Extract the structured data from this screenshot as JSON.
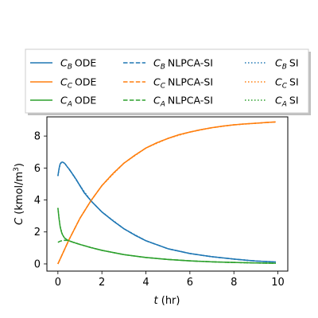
{
  "chart_data": {
    "type": "line",
    "xlabel": "t (hr)",
    "ylabel": "C (kmol/m³)",
    "xlim": [
      -0.5,
      10.45
    ],
    "ylim": [
      -0.45,
      9.2
    ],
    "xticks": [
      0,
      2,
      4,
      6,
      8,
      10
    ],
    "yticks": [
      0,
      2,
      4,
      6,
      8
    ],
    "grid": false,
    "legend_placement": "top, outside plot area, 3 columns",
    "series": [
      {
        "name": "C_B ODE",
        "species": "B",
        "method": "ODE",
        "color": "#1f77b4",
        "linestyle": "solid",
        "x": [
          0,
          0.05,
          0.1,
          0.15,
          0.2,
          0.25,
          0.3,
          0.35,
          0.4,
          0.5,
          0.6,
          0.8,
          1.0,
          1.2,
          1.5,
          2.0,
          2.5,
          3.0,
          3.5,
          4.0,
          4.5,
          5.0,
          6.0,
          7.0,
          8.0,
          9.0,
          9.9
        ],
        "y": [
          5.5,
          5.95,
          6.25,
          6.35,
          6.37,
          6.35,
          6.3,
          6.22,
          6.12,
          5.95,
          5.75,
          5.35,
          4.9,
          4.45,
          3.95,
          3.25,
          2.7,
          2.2,
          1.8,
          1.45,
          1.2,
          0.95,
          0.65,
          0.45,
          0.3,
          0.18,
          0.12
        ]
      },
      {
        "name": "C_C ODE",
        "species": "C",
        "method": "ODE",
        "color": "#ff7f0e",
        "linestyle": "solid",
        "x": [
          0,
          0.25,
          0.5,
          1.0,
          1.5,
          2.0,
          2.5,
          3.0,
          3.5,
          4.0,
          4.5,
          5.0,
          5.5,
          6.0,
          6.5,
          7.0,
          7.5,
          8.0,
          8.5,
          9.0,
          9.5,
          9.9
        ],
        "y": [
          0,
          0.75,
          1.5,
          2.85,
          3.95,
          4.9,
          5.65,
          6.3,
          6.8,
          7.25,
          7.58,
          7.85,
          8.08,
          8.25,
          8.4,
          8.52,
          8.62,
          8.7,
          8.76,
          8.8,
          8.85,
          8.88
        ]
      },
      {
        "name": "C_A ODE",
        "species": "A",
        "method": "ODE",
        "color": "#2ca02c",
        "linestyle": "solid",
        "x": [
          0,
          0.05,
          0.1,
          0.15,
          0.2,
          0.3,
          0.4,
          0.5,
          0.7,
          1.0,
          1.5,
          2.0,
          3.0,
          4.0,
          5.0,
          6.0,
          7.0,
          8.0,
          9.0,
          9.9
        ],
        "y": [
          3.5,
          2.85,
          2.35,
          2.05,
          1.85,
          1.62,
          1.52,
          1.45,
          1.35,
          1.22,
          1.02,
          0.85,
          0.58,
          0.4,
          0.28,
          0.19,
          0.13,
          0.09,
          0.06,
          0.04
        ]
      },
      {
        "name": "C_B NLPCA-SI",
        "species": "B",
        "method": "NLPCA-SI",
        "color": "#1f77b4",
        "linestyle": "dashed",
        "x": [
          0.5,
          0.6,
          0.8,
          1.0,
          1.2,
          1.5,
          2.0,
          2.5,
          3.0,
          3.5,
          4.0,
          4.5,
          5.0,
          6.0,
          7.0,
          8.0,
          9.0,
          9.9
        ],
        "y": [
          5.95,
          5.75,
          5.35,
          4.9,
          4.45,
          3.95,
          3.25,
          2.7,
          2.2,
          1.8,
          1.45,
          1.2,
          0.95,
          0.65,
          0.45,
          0.3,
          0.18,
          0.12
        ]
      },
      {
        "name": "C_C NLPCA-SI",
        "species": "C",
        "method": "NLPCA-SI",
        "color": "#ff7f0e",
        "linestyle": "dashed",
        "x": [
          0,
          0.25,
          0.5,
          1.0,
          1.5,
          2.0,
          2.5,
          3.0,
          3.5,
          4.0,
          4.5,
          5.0,
          5.5,
          6.0,
          6.5,
          7.0,
          7.5,
          8.0,
          8.5,
          9.0,
          9.5,
          9.9
        ],
        "y": [
          0,
          0.75,
          1.5,
          2.85,
          3.95,
          4.9,
          5.65,
          6.3,
          6.8,
          7.25,
          7.58,
          7.85,
          8.08,
          8.25,
          8.4,
          8.52,
          8.62,
          8.7,
          8.76,
          8.8,
          8.85,
          8.88
        ]
      },
      {
        "name": "C_A NLPCA-SI",
        "species": "A",
        "method": "NLPCA-SI",
        "color": "#2ca02c",
        "linestyle": "dashed",
        "x": [
          0,
          0.1,
          0.2,
          0.3,
          0.4,
          0.5,
          0.7,
          1.0,
          1.5,
          2.0,
          3.0,
          4.0,
          5.0,
          6.0,
          7.0,
          8.0,
          9.0,
          9.9
        ],
        "y": [
          1.35,
          1.42,
          1.46,
          1.48,
          1.47,
          1.45,
          1.35,
          1.22,
          1.02,
          0.85,
          0.58,
          0.4,
          0.28,
          0.19,
          0.13,
          0.09,
          0.06,
          0.04
        ]
      },
      {
        "name": "C_B SI",
        "species": "B",
        "method": "SI",
        "color": "#1f77b4",
        "linestyle": "dotted",
        "x": [
          0,
          0.1,
          0.2,
          0.3,
          0.4,
          0.6,
          1.0,
          1.5,
          2.0,
          3.0,
          4.0,
          5.0,
          6.0,
          7.0,
          8.0,
          9.0,
          9.9
        ],
        "y": [
          5.5,
          6.25,
          6.37,
          6.3,
          6.12,
          5.75,
          4.9,
          3.95,
          3.25,
          2.2,
          1.45,
          0.95,
          0.65,
          0.45,
          0.3,
          0.18,
          0.12
        ]
      },
      {
        "name": "C_C SI",
        "species": "C",
        "method": "SI",
        "color": "#ff7f0e",
        "linestyle": "dotted",
        "x": [
          0,
          0.5,
          1.0,
          1.5,
          2.0,
          3.0,
          4.0,
          5.0,
          6.0,
          7.0,
          8.0,
          9.0,
          9.9
        ],
        "y": [
          0,
          1.5,
          2.85,
          3.95,
          4.9,
          6.3,
          7.25,
          7.85,
          8.25,
          8.52,
          8.7,
          8.8,
          8.88
        ]
      },
      {
        "name": "C_A SI",
        "species": "A",
        "method": "SI",
        "color": "#2ca02c",
        "linestyle": "dotted",
        "x": [
          0,
          0.1,
          0.2,
          0.3,
          0.5,
          1.0,
          2.0,
          3.0,
          4.0,
          5.0,
          6.0,
          7.0,
          8.0,
          9.0,
          9.9
        ],
        "y": [
          3.5,
          2.35,
          1.85,
          1.62,
          1.45,
          1.22,
          0.85,
          0.58,
          0.4,
          0.28,
          0.19,
          0.13,
          0.09,
          0.06,
          0.04
        ]
      }
    ]
  }
}
